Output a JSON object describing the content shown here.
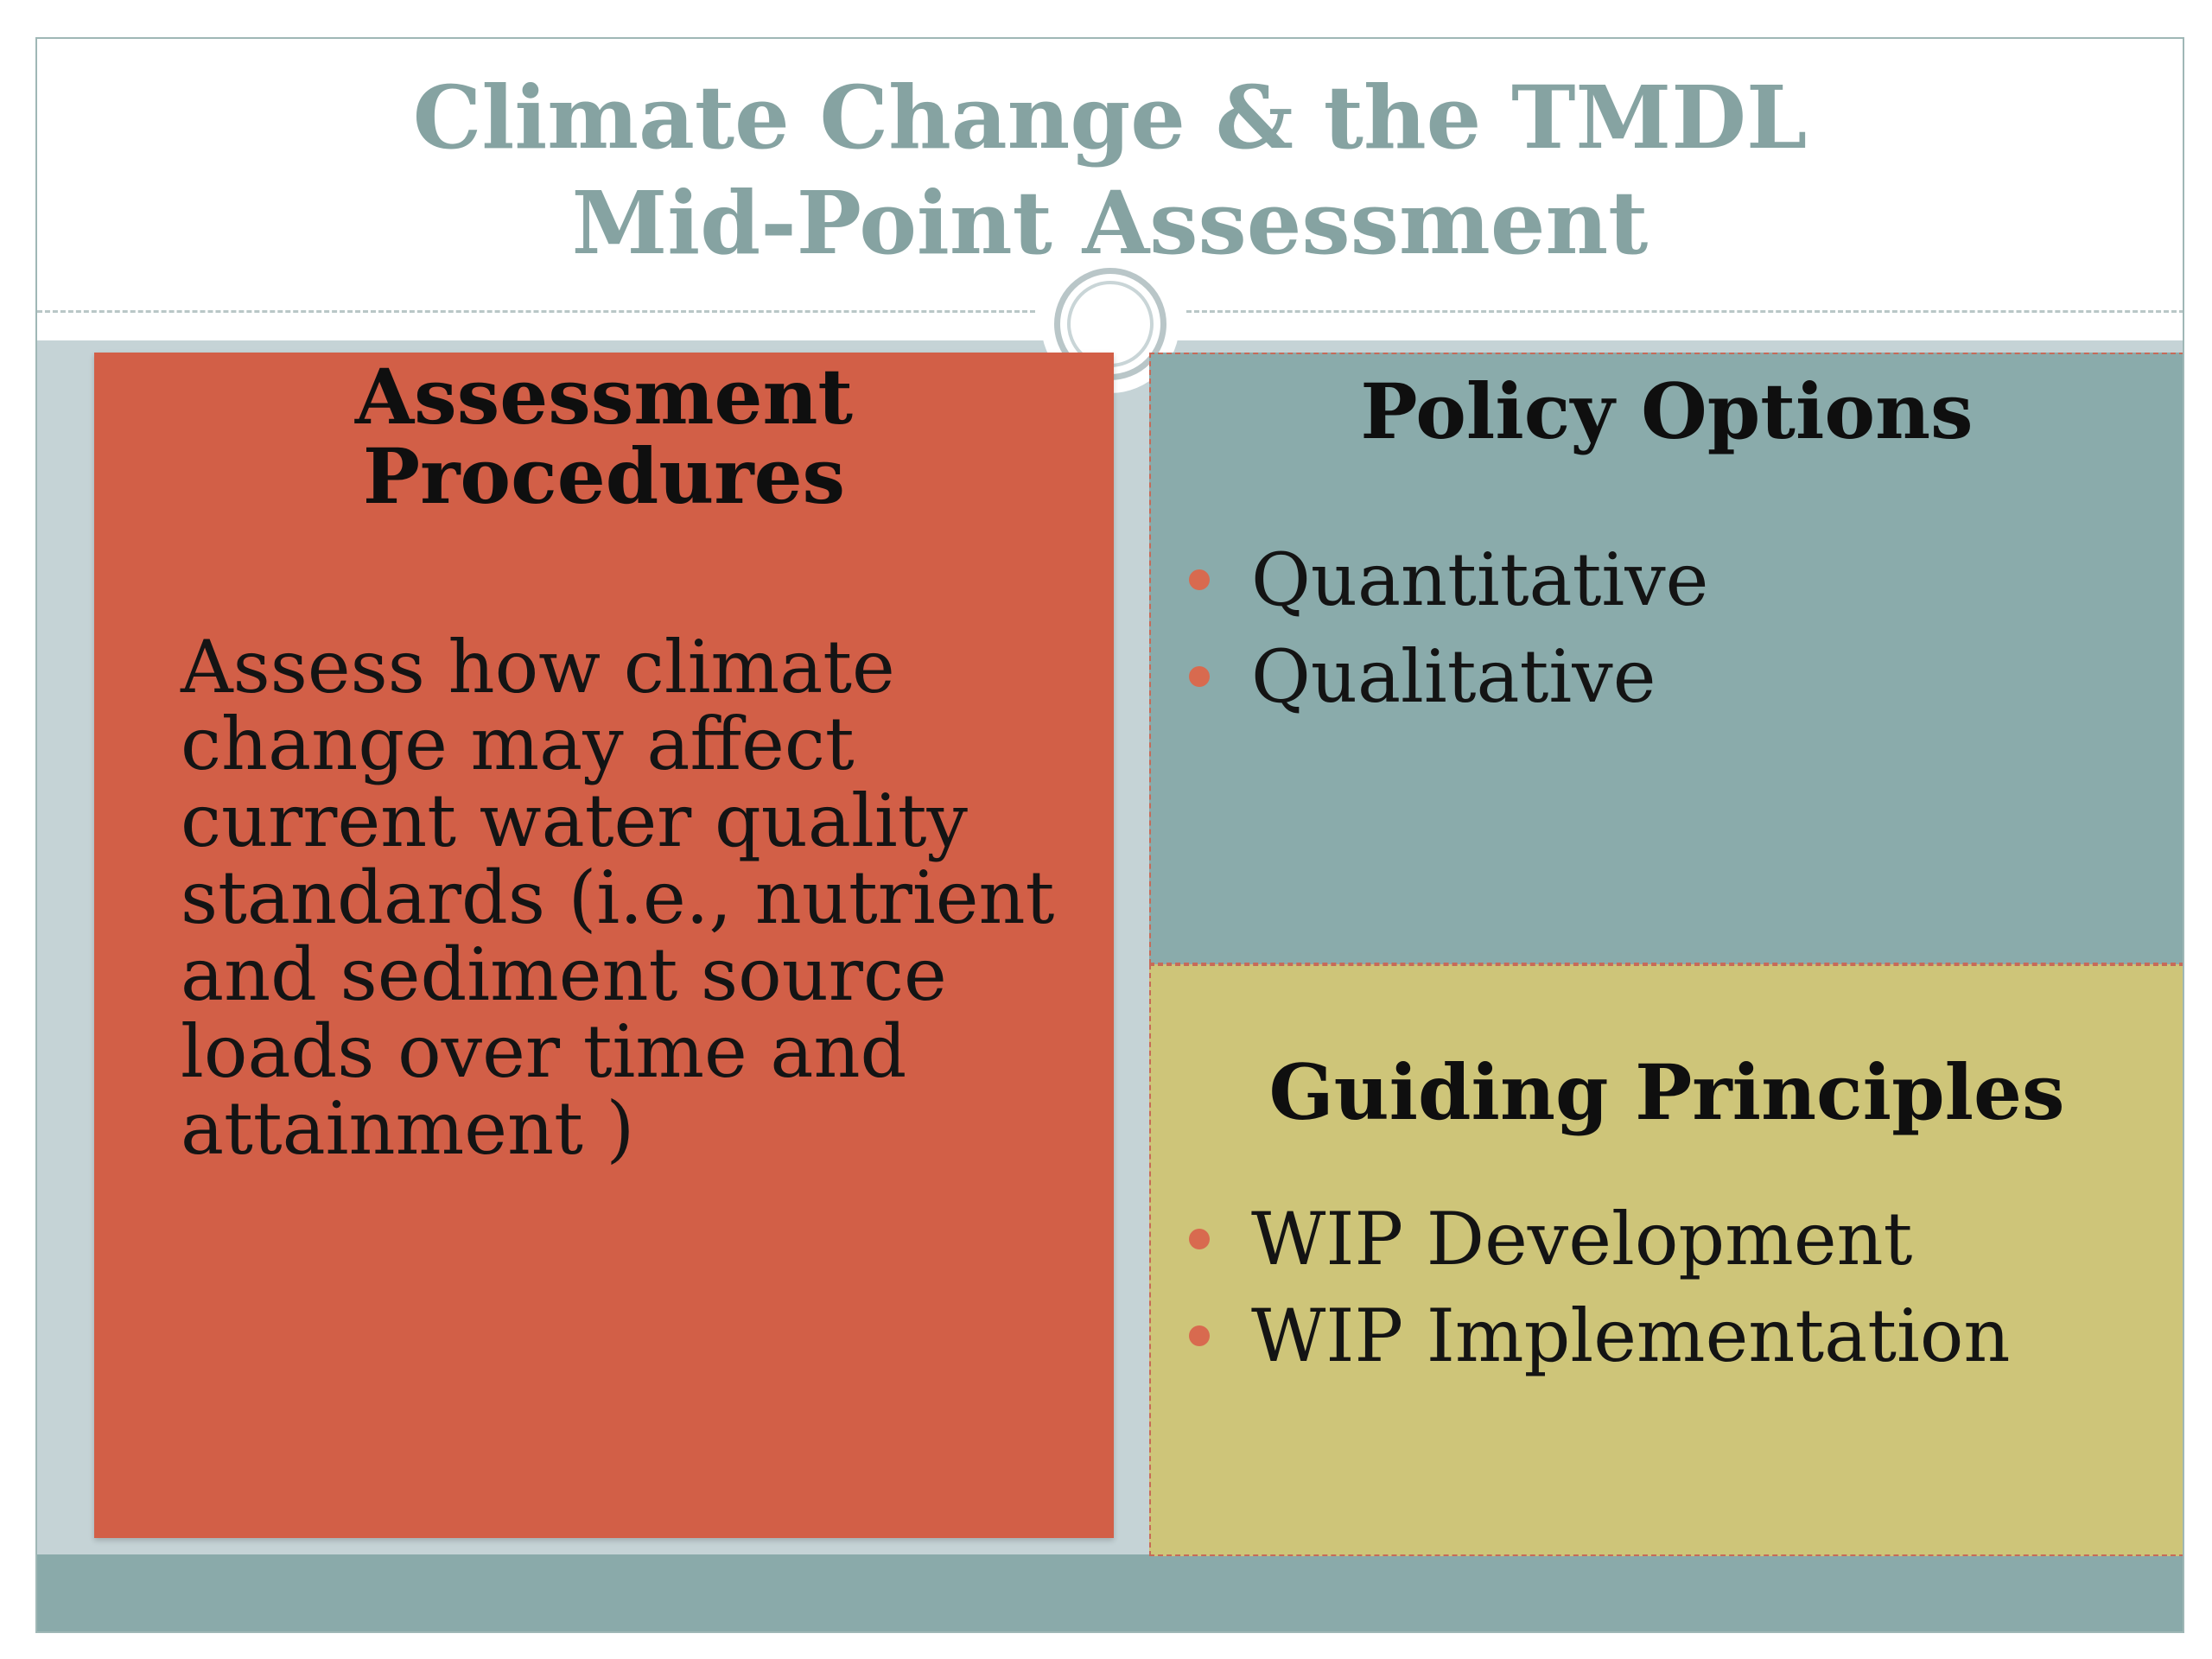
{
  "slide": {
    "title_lines": [
      "Climate Change & the TMDL",
      "Mid-Point Assessment"
    ],
    "colors": {
      "title": "#86a3a2",
      "assessment_panel": "#d25f47",
      "policy_panel": "#8aabab",
      "guiding_panel": "#cec579",
      "bullet": "#d86a4f"
    }
  },
  "panels": {
    "assessment": {
      "heading_lines": [
        "Assessment",
        "Procedures"
      ],
      "body": "Assess how  climate\nchange may affect\ncurrent water quality\nstandards (i.e., nutrient\nand sediment source\nloads over time and\nattainment )"
    },
    "policy": {
      "heading": "Policy Options",
      "bullets": [
        "Quantitative",
        "Qualitative"
      ]
    },
    "guiding": {
      "heading": "Guiding Principles",
      "bullets": [
        "WIP Development",
        "WIP Implementation"
      ]
    }
  }
}
